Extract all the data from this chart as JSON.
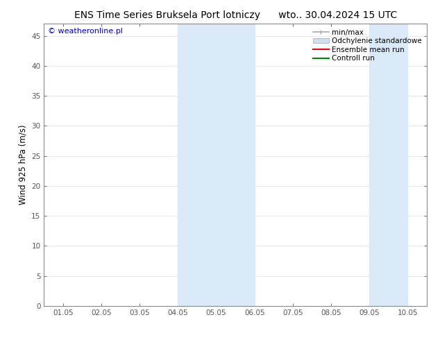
{
  "title_left": "ENS Time Series Bruksela Port lotniczy",
  "title_right": "wto.. 30.04.2024 15 UTC",
  "ylabel": "Wind 925 hPa (m/s)",
  "watermark": "© weatheronline.pl",
  "watermark_color": "#0000cc",
  "xlim_start": 0,
  "xlim_end": 9,
  "ylim_min": 0,
  "ylim_max": 47,
  "yticks": [
    0,
    5,
    10,
    15,
    20,
    25,
    30,
    35,
    40,
    45
  ],
  "xtick_labels": [
    "01.05",
    "02.05",
    "03.05",
    "04.05",
    "05.05",
    "06.05",
    "07.05",
    "08.05",
    "09.05",
    "10.05"
  ],
  "background_color": "#ffffff",
  "plot_bg_color": "#ffffff",
  "shade_regions": [
    {
      "xstart": 3.0,
      "xend": 5.0,
      "color": "#daeaf8"
    },
    {
      "xstart": 8.0,
      "xend": 9.0,
      "color": "#daeaf8"
    }
  ],
  "title_fontsize": 10,
  "tick_fontsize": 7.5,
  "ylabel_fontsize": 8.5,
  "watermark_fontsize": 8,
  "grid_color": "#dddddd",
  "spine_color": "#888888",
  "legend_fontsize": 7.5,
  "legend_minmax_color": "#aaaaaa",
  "legend_std_color": "#cce0f0",
  "legend_ens_color": "#ff0000",
  "legend_ctrl_color": "#008800"
}
